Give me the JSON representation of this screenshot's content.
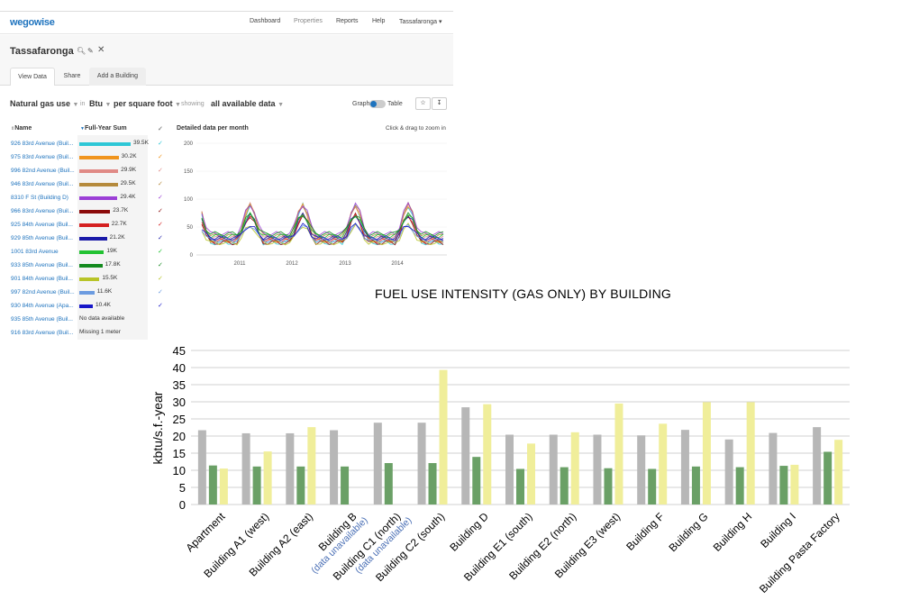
{
  "app": {
    "logo": "wegowise",
    "nav": [
      "Dashboard",
      "Properties",
      "Reports",
      "Help",
      "Tassafaronga ▾"
    ],
    "title": "Tassafaronga",
    "tabs": [
      "View Data",
      "Share",
      "Add a Building"
    ],
    "filters": {
      "metric": "Natural gas use",
      "in": "in",
      "unit": "Btu",
      "per": "per square foot",
      "showing": "showing",
      "range": "all available data"
    },
    "toggle": {
      "left": "Graph",
      "right": "Table"
    },
    "list_headers": {
      "name": "Name",
      "sum": "Full-Year Sum"
    },
    "rows": [
      {
        "name": "926 83rd Avenue (Buil...",
        "value": 39.5,
        "label": "39.5K",
        "color": "#2ec7d6"
      },
      {
        "name": "975 83rd Avenue (Buil...",
        "value": 30.2,
        "label": "30.2K",
        "color": "#f0941d"
      },
      {
        "name": "996 82nd Avenue (Buil...",
        "value": 29.9,
        "label": "29.9K",
        "color": "#e08a86"
      },
      {
        "name": "946 83rd Avenue (Buil...",
        "value": 29.5,
        "label": "29.5K",
        "color": "#b58a3c"
      },
      {
        "name": "8310 F St (Building D)",
        "value": 29.4,
        "label": "29.4K",
        "color": "#9b3fd6"
      },
      {
        "name": "966 83rd Avenue (Buil...",
        "value": 23.7,
        "label": "23.7K",
        "color": "#8b0a0a"
      },
      {
        "name": "925 84th Avenue (Buil...",
        "value": 22.7,
        "label": "22.7K",
        "color": "#d42020"
      },
      {
        "name": "929 85th Avenue (Buil...",
        "value": 21.2,
        "label": "21.2K",
        "color": "#1a1aa8"
      },
      {
        "name": "1001 83rd Avenue",
        "value": 19.0,
        "label": "19K",
        "color": "#22c232"
      },
      {
        "name": "933 85th Avenue (Buil...",
        "value": 17.8,
        "label": "17.8K",
        "color": "#138a1e"
      },
      {
        "name": "901 84th Avenue (Buil...",
        "value": 15.5,
        "label": "15.5K",
        "color": "#b8c428"
      },
      {
        "name": "997 82nd Avenue (Buil...",
        "value": 11.6,
        "label": "11.6K",
        "color": "#6b9be0"
      },
      {
        "name": "930 84th Avenue (Apa...",
        "value": 10.4,
        "label": "10.4K",
        "color": "#1717c8"
      },
      {
        "name": "935 85th Avenue (Buil...",
        "note": "No data available"
      },
      {
        "name": "916 83rd Avenue (Buil...",
        "note": "Missing 1 meter"
      }
    ],
    "line_chart": {
      "title": "Detailed data per month",
      "hint": "Click & drag to zoom in",
      "y_ticks": [
        "200",
        "150",
        "100",
        "50",
        "0"
      ],
      "x_ticks": [
        "2011",
        "2012",
        "2013",
        "2014"
      ]
    }
  },
  "chart_data": {
    "type": "bar",
    "title": "FUEL USE INTENSITY (GAS ONLY) BY BUILDING",
    "ylabel": "kbtu/s.f.-year",
    "xlabel": "",
    "ylim": [
      0,
      45
    ],
    "yticks": [
      0,
      5,
      10,
      15,
      20,
      25,
      30,
      35,
      40,
      45
    ],
    "grid": true,
    "categories": [
      "Apartment",
      "Building A1 (west)",
      "Building A2 (east)",
      "Building B",
      "Building C1 (north)",
      "Building C2 (south)",
      "Building D",
      "Building E1 (south)",
      "Building E2 (north)",
      "Building E3 (west)",
      "Building F",
      "Building G",
      "Building H",
      "Building I",
      "Building Pasta Factory"
    ],
    "category_notes": [
      "",
      "",
      "",
      "(data unavailable)",
      "(data unavailable)",
      "",
      "",
      "",
      "",
      "",
      "",
      "",
      "",
      "",
      ""
    ],
    "series": [
      {
        "values": [
          21.7,
          20.8,
          20.8,
          21.7,
          23.9,
          23.9,
          28.4,
          20.4,
          20.4,
          20.4,
          20.2,
          21.8,
          19.0,
          20.9,
          22.6
        ],
        "color": "#b7b7b7"
      },
      {
        "values": [
          11.4,
          11.1,
          11.1,
          11.1,
          12.1,
          12.1,
          13.9,
          10.4,
          10.9,
          10.6,
          10.4,
          11.1,
          10.9,
          11.3,
          15.4
        ],
        "color": "#6aa066"
      },
      {
        "values": [
          10.5,
          15.5,
          22.6,
          null,
          null,
          39.3,
          29.3,
          17.8,
          21.1,
          29.5,
          23.6,
          29.9,
          29.9,
          11.6,
          18.9
        ],
        "color": "#f0ee9a"
      }
    ]
  }
}
